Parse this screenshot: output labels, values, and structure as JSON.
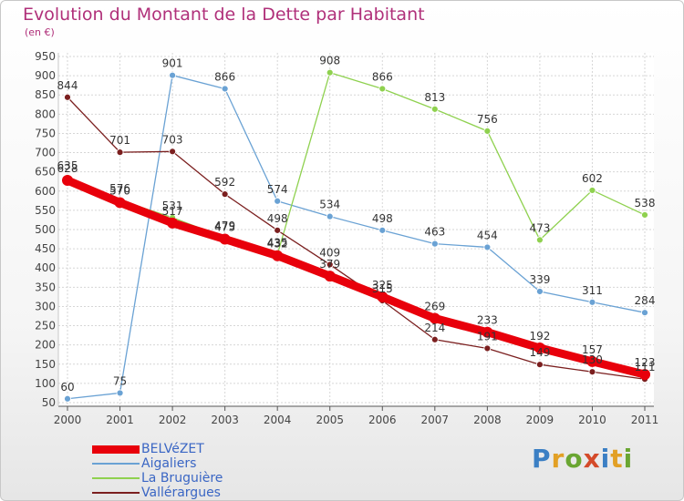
{
  "header": {
    "title": "Evolution du Montant de la Dette par Habitant",
    "unit": "(en €)"
  },
  "brand": {
    "text": "Proxiti",
    "letter_colors": [
      "#3b7fc4",
      "#e2a025",
      "#6aa632",
      "#d44a2a",
      "#3b7fc4",
      "#e2a025",
      "#6aa632"
    ]
  },
  "chart_data": {
    "type": "line",
    "title": "Evolution du Montant de la Dette par Habitant",
    "ylabel": "(en €)",
    "xlabel": "",
    "x": [
      "2000",
      "2001",
      "2002",
      "2003",
      "2004",
      "2005",
      "2006",
      "2007",
      "2008",
      "2009",
      "2010",
      "2011"
    ],
    "ylim": [
      50,
      950
    ],
    "yticks": [
      50,
      100,
      150,
      200,
      250,
      300,
      350,
      400,
      450,
      500,
      550,
      600,
      650,
      700,
      750,
      800,
      850,
      900,
      950
    ],
    "grid": true,
    "legend_position": "bottom-left",
    "series": [
      {
        "name": "BELVéZET",
        "color": "#e8000b",
        "width": "thick",
        "values": [
          628,
          570,
          517,
          475,
          432,
          379,
          325,
          269,
          233,
          192,
          157,
          123
        ]
      },
      {
        "name": "Aigaliers",
        "color": "#6aa2d4",
        "width": "thin",
        "values": [
          60,
          75,
          901,
          866,
          574,
          534,
          498,
          463,
          454,
          339,
          311,
          284
        ]
      },
      {
        "name": "La Bruguière",
        "color": "#8fd14f",
        "width": "thin",
        "values": [
          635,
          576,
          531,
          479,
          435,
          908,
          866,
          813,
          756,
          473,
          602,
          538
        ]
      },
      {
        "name": "Vallérargues",
        "color": "#7b1f1f",
        "width": "thin",
        "values": [
          844,
          701,
          703,
          592,
          498,
          409,
          315,
          214,
          191,
          149,
          130,
          111
        ]
      }
    ]
  }
}
